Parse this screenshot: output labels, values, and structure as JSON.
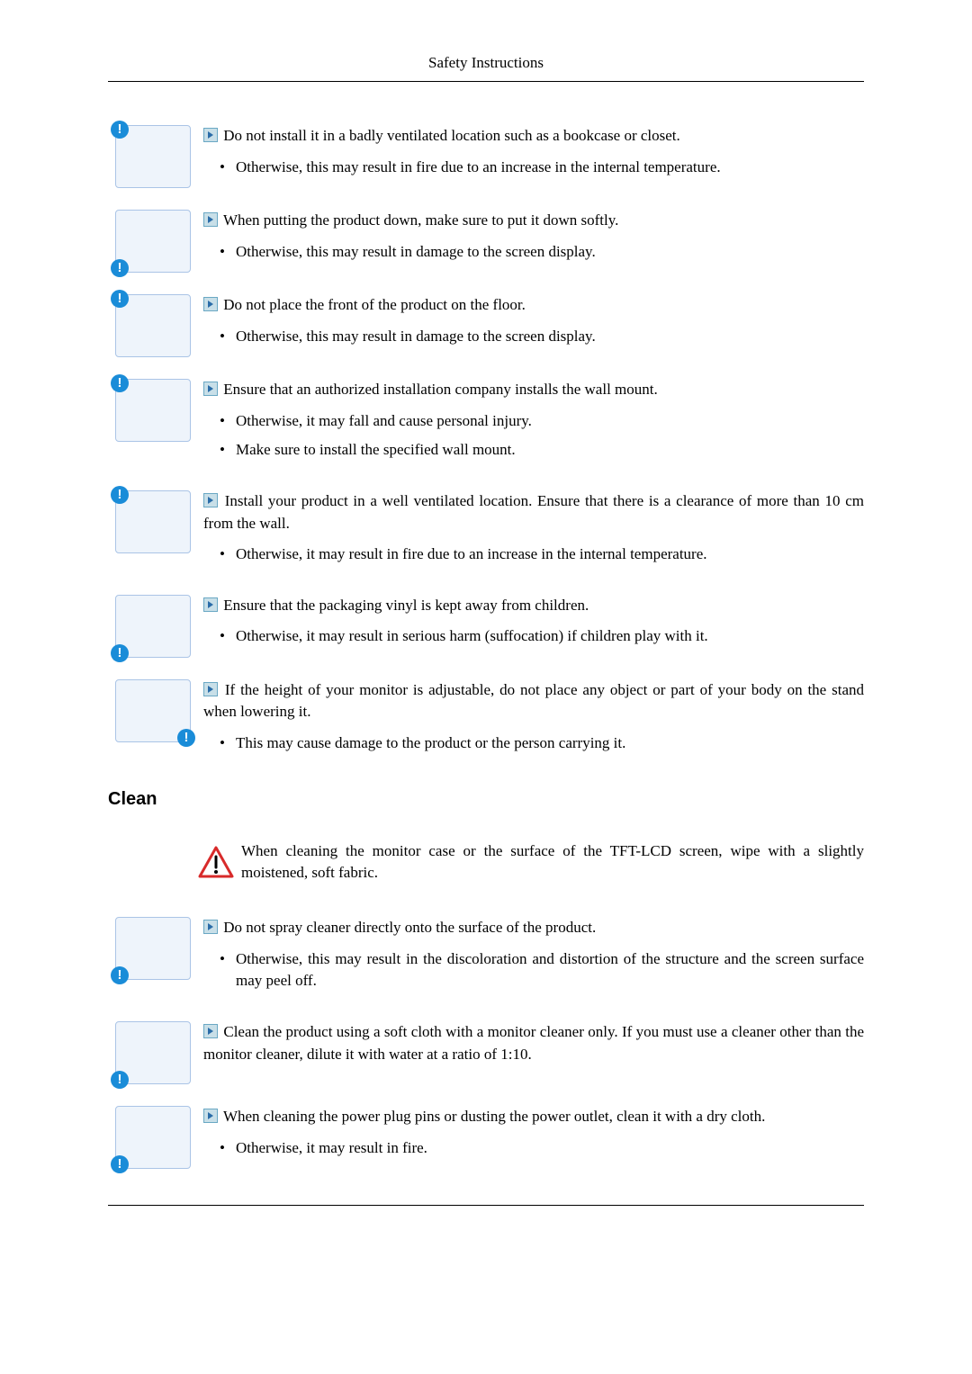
{
  "header": "Safety Instructions",
  "items": [
    {
      "lead": "Do not install it in a badly ventilated location such as a bookcase or closet.",
      "subs": [
        "Otherwise, this may result in fire due to an increase in the internal temperature."
      ],
      "dot": "tl"
    },
    {
      "lead": "When putting the product down, make sure to put it down softly.",
      "subs": [
        "Otherwise, this may result in damage to the screen display."
      ],
      "dot": "bl"
    },
    {
      "lead": "Do not place the front of the product on the floor.",
      "subs": [
        "Otherwise, this may result in damage to the screen display."
      ],
      "dot": "tl"
    },
    {
      "lead": "Ensure that an authorized installation company installs the wall mount.",
      "subs": [
        "Otherwise, it may fall and cause personal injury.",
        "Make sure to install the specified wall mount."
      ],
      "dot": "tl"
    },
    {
      "lead": "Install your product in a well ventilated location. Ensure that there is a clearance of more than 10 cm from the wall.",
      "subs": [
        "Otherwise, it may result in fire due to an increase in the internal temperature."
      ],
      "dot": "tl"
    },
    {
      "lead": "Ensure that the packaging vinyl is kept away from children.",
      "subs": [
        "Otherwise, it may result in serious harm (suffocation) if children play with it."
      ],
      "dot": "bl"
    },
    {
      "lead": "If the height of your monitor is adjustable, do not place any object or part of your body on the stand when lowering it.",
      "subs": [
        "This may cause damage to the product or the person carrying it."
      ],
      "dot": "br"
    }
  ],
  "sectionTitle": "Clean",
  "cleanIntro": "When cleaning the monitor case or the surface of the TFT-LCD screen, wipe with a slightly moistened, soft fabric.",
  "cleanItems": [
    {
      "lead": "Do not spray cleaner directly onto the surface of the product.",
      "subs": [
        "Otherwise, this may result in the discoloration and distortion of the structure and the screen surface may peel off."
      ],
      "dot": "bl"
    },
    {
      "lead": "Clean the product using a soft cloth with a monitor cleaner only. If you must use a cleaner other than the monitor cleaner, dilute it with water at a ratio of 1:10.",
      "subs": [],
      "dot": "bl"
    },
    {
      "lead": "When cleaning the power plug pins or dusting the power outlet, clean it with a dry cloth.",
      "subs": [
        "Otherwise, it may result in fire."
      ],
      "dot": "bl"
    }
  ],
  "colors": {
    "text": "#000000",
    "iconBg": "#eef4fb",
    "iconBorder": "#aac4e6",
    "warnBlue": "#1a8cd8",
    "warnRed": "#d82a2a"
  }
}
